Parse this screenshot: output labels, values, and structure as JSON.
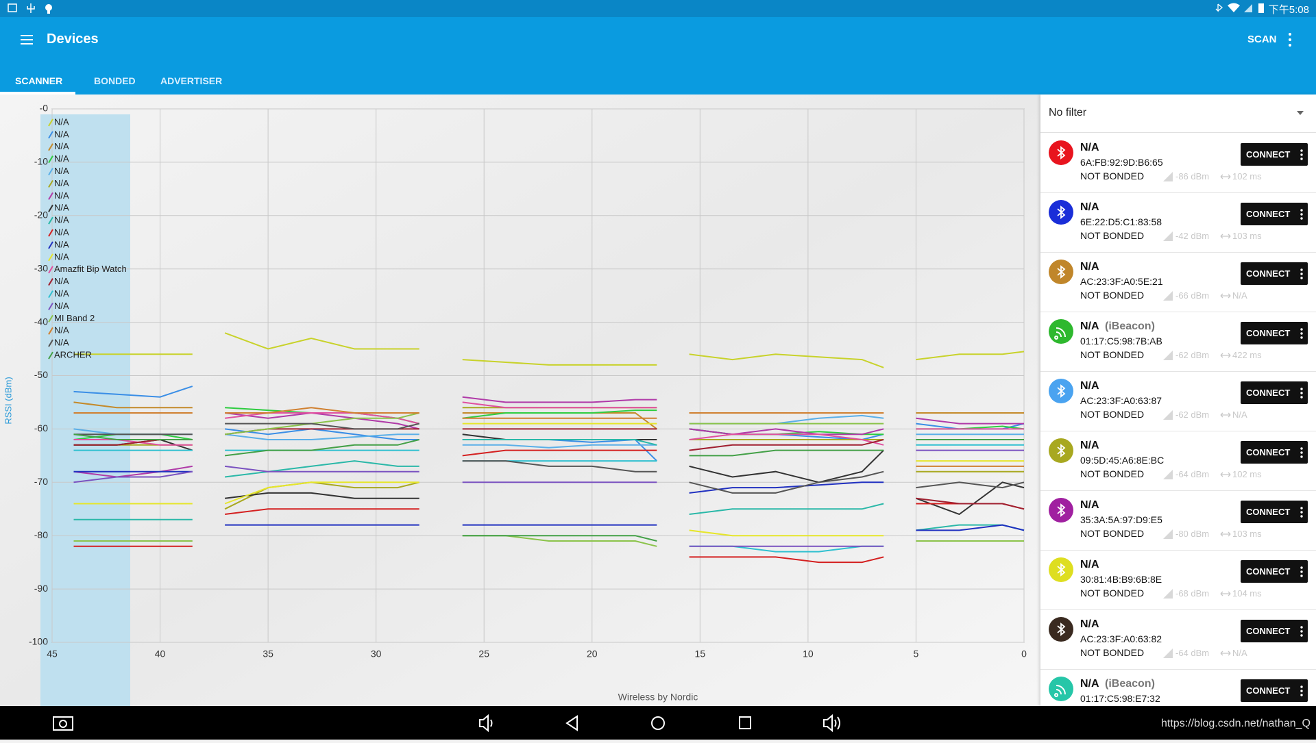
{
  "status_bar": {
    "time": "下午5:08"
  },
  "app_bar": {
    "title": "Devices",
    "action": "SCAN"
  },
  "tabs": [
    "SCANNER",
    "BONDED",
    "ADVERTISER"
  ],
  "chart_data": {
    "type": "line",
    "y_label": "RSSI (dBm)",
    "footer": "Wireless by Nordic",
    "grid": true,
    "xlim": [
      45,
      0
    ],
    "xticks": [
      45,
      40,
      35,
      30,
      25,
      20,
      15,
      10,
      5,
      0
    ],
    "ylim": [
      -100,
      0
    ],
    "yticks": [
      {
        "value": 0,
        "label": "-0"
      },
      -10,
      -20,
      -30,
      -40,
      -50,
      -60,
      -70,
      -80,
      -90,
      -100
    ],
    "x": [
      44,
      42,
      40,
      38.5,
      37.7,
      37,
      35,
      33,
      31,
      29,
      28,
      27,
      26,
      24,
      22,
      20,
      18,
      17,
      16.2,
      15.5,
      13.5,
      11.5,
      9.5,
      7.5,
      6.5,
      5.7,
      5,
      3,
      1,
      0
    ],
    "series": [
      {
        "name": "N/A",
        "color": "#c8d22a",
        "values": [
          -46,
          -46,
          -46,
          -46,
          null,
          -42,
          -45,
          -43,
          -45,
          -45,
          -45,
          null,
          -47,
          -47.5,
          -48,
          -48,
          -48,
          -48,
          null,
          -46,
          -47,
          -46,
          -46.5,
          -47,
          -48.5,
          null,
          -47,
          -46,
          -46,
          -45.5
        ]
      },
      {
        "name": "N/A",
        "color": "#3a8ee6",
        "values": [
          -53,
          -53.5,
          -54,
          -52,
          null,
          -60,
          -61,
          -60,
          -61,
          -62,
          -62,
          null,
          -62,
          -62,
          -62,
          -62.5,
          -62,
          -66,
          null,
          -60,
          -61,
          -61,
          -61.5,
          -62,
          -61,
          null,
          -59,
          -60,
          -60,
          -59
        ]
      },
      {
        "name": "N/A",
        "color": "#c48a2a",
        "values": [
          -55,
          -56,
          -56,
          -56,
          null,
          -57,
          -57,
          -57,
          -57,
          -57,
          -57,
          null,
          -57,
          -57,
          -57,
          -57,
          -57,
          -60,
          null,
          -57,
          -57,
          -57,
          -57,
          -57,
          -57,
          null,
          -57,
          -57,
          -57,
          -57
        ]
      },
      {
        "name": "N/A",
        "color": "#2ecc40",
        "values": [
          -62,
          -61,
          -61,
          -62,
          null,
          -56,
          -56.5,
          -57,
          -57,
          -58,
          -59,
          null,
          -58,
          -57,
          -57,
          -57,
          -56.5,
          -56.5,
          null,
          -60,
          -61,
          -61,
          -60.5,
          -61,
          -61,
          null,
          -60,
          -60,
          -59.5,
          -60
        ]
      },
      {
        "name": "N/A",
        "color": "#5aafe8",
        "values": [
          -60,
          -61,
          -61,
          -61,
          null,
          -61,
          -62,
          -62,
          -61.5,
          -61,
          -61,
          null,
          -63,
          -63,
          -63.5,
          -63,
          -63,
          -63,
          null,
          -59,
          -59,
          -59,
          -58,
          -57.5,
          -58,
          null,
          -61,
          -61,
          -61,
          -61
        ]
      },
      {
        "name": "N/A",
        "color": "#a8a820",
        "values": [
          -63,
          -63,
          -63,
          -63,
          null,
          -75,
          -71,
          -70,
          -71,
          -71,
          -70,
          null,
          -56,
          -56,
          -56,
          -56,
          -56,
          -56,
          null,
          -62,
          -62,
          -62,
          -62,
          -62,
          -62,
          null,
          -68,
          -68,
          -68,
          -68
        ]
      },
      {
        "name": "N/A",
        "color": "#b03aa8",
        "values": [
          -68,
          -69,
          -68,
          -67,
          null,
          -57,
          -58,
          -57,
          -58,
          -59,
          -60,
          null,
          -54,
          -55,
          -55,
          -55,
          -54.5,
          -54.5,
          null,
          -60,
          -61,
          -60,
          -61,
          -61,
          -60,
          null,
          -58,
          -59,
          -59,
          -59
        ]
      },
      {
        "name": "N/A",
        "color": "#333333",
        "values": [
          -63,
          -63,
          -62,
          -64,
          null,
          -73,
          -72,
          -72,
          -73,
          -73,
          -73,
          null,
          -61,
          -62,
          -62,
          -62,
          -62,
          -62,
          null,
          -67,
          -69,
          -68,
          -70,
          -68,
          -64,
          null,
          -73,
          -76,
          -70,
          -71
        ]
      },
      {
        "name": "N/A",
        "color": "#2ab8a8",
        "values": [
          -77,
          -77,
          -77,
          -77,
          null,
          -69,
          -68,
          -67,
          -66,
          -67,
          -67,
          null,
          -62,
          -62,
          -62,
          -62,
          -62,
          -63,
          null,
          -76,
          -75,
          -75,
          -75,
          -75,
          -74,
          null,
          -79,
          -78,
          -78,
          -79
        ]
      },
      {
        "name": "N/A",
        "color": "#d42020",
        "values": [
          -82,
          -82,
          -82,
          -82,
          null,
          -76,
          -75,
          -75,
          -75,
          -75,
          -75,
          null,
          -65,
          -64,
          -64,
          -64,
          -64,
          -64,
          null,
          -84,
          -84,
          -84,
          -85,
          -85,
          -84,
          null,
          -74,
          -74,
          -74,
          -75
        ]
      },
      {
        "name": "N/A",
        "color": "#2030c0",
        "values": [
          -68,
          -68,
          -68,
          -68,
          null,
          -78,
          -78,
          -78,
          -78,
          -78,
          -78,
          null,
          -78,
          -78,
          -78,
          -78,
          -78,
          -78,
          null,
          -72,
          -71,
          -71,
          -70.5,
          -70,
          -70,
          null,
          -79,
          -79,
          -78,
          -79
        ]
      },
      {
        "name": "N/A",
        "color": "#e6e62a",
        "values": [
          -74,
          -74,
          -74,
          -74,
          null,
          -74,
          -71,
          -70,
          -70,
          -70,
          -70,
          null,
          -59,
          -59,
          -59,
          -59,
          -59,
          -59,
          null,
          -79,
          -80,
          -80,
          -80,
          -80,
          -80,
          null,
          -66,
          -66,
          -66,
          -66
        ]
      },
      {
        "name": "Amazfit Bip Watch",
        "color": "#e050a0",
        "values": [
          -62,
          -62,
          -63,
          -63,
          null,
          -58,
          -57,
          -57,
          -57,
          -58,
          -59,
          null,
          -55,
          -56,
          -56,
          -56,
          -56,
          -56,
          null,
          -62,
          -61,
          -61,
          -61,
          -62,
          -63,
          null,
          -60,
          -60,
          -60,
          -60
        ]
      },
      {
        "name": "N/A",
        "color": "#a02030",
        "values": [
          -63,
          -63,
          -62,
          -62,
          null,
          -61,
          -60,
          -60,
          -60,
          -60,
          -60,
          null,
          -60,
          -60,
          -60,
          -60,
          -60,
          -60,
          null,
          -64,
          -63,
          -63,
          -63,
          -63,
          -62,
          null,
          -73,
          -74,
          -74,
          -75
        ]
      },
      {
        "name": "N/A",
        "color": "#30c0d0",
        "values": [
          -64,
          -64,
          -64,
          -64,
          null,
          -64,
          -64,
          -64,
          -64,
          -64,
          -64,
          null,
          -66,
          -66,
          -66,
          -66,
          -66,
          -66,
          null,
          -82,
          -82,
          -83,
          -83,
          -82,
          -82,
          null,
          -63,
          -63,
          -63,
          -63
        ]
      },
      {
        "name": "N/A",
        "color": "#7a52c0",
        "values": [
          -70,
          -69,
          -69,
          -68,
          null,
          -67,
          -68,
          -68,
          -68,
          -68,
          -68,
          null,
          -70,
          -70,
          -70,
          -70,
          -70,
          -70,
          null,
          -82,
          -82,
          -82,
          -82,
          -82,
          -82,
          null,
          -64,
          -64,
          -64,
          -64
        ]
      },
      {
        "name": "MI Band 2",
        "color": "#8bc34a",
        "values": [
          -81,
          -81,
          -81,
          -81,
          null,
          -61,
          -60,
          -59,
          -58,
          -58,
          -57,
          null,
          -80,
          -80,
          -81,
          -81,
          -81,
          -82,
          null,
          -59,
          -59,
          -59,
          -59,
          -59,
          -59,
          null,
          -81,
          -81,
          -81,
          -81
        ]
      },
      {
        "name": "N/A",
        "color": "#d08030",
        "values": [
          -57,
          -57,
          -57,
          -57,
          null,
          -57,
          -57,
          -56,
          -57,
          -57,
          -57,
          null,
          -58,
          -58,
          -58,
          -58,
          -58,
          -58,
          null,
          -57,
          -57,
          -57,
          -57,
          -57,
          -57,
          null,
          -67,
          -67,
          -67,
          -67
        ]
      },
      {
        "name": "N/A",
        "color": "#555555",
        "values": [
          -61,
          -61,
          -61,
          -61,
          null,
          -59,
          -59,
          -59,
          -60,
          -60,
          -59,
          null,
          -66,
          -66,
          -67,
          -67,
          -68,
          -68,
          null,
          -70,
          -72,
          -72,
          -70,
          -69,
          -68,
          null,
          -71,
          -70,
          -71,
          -70
        ]
      },
      {
        "name": "ARCHER",
        "color": "#43a047",
        "values": [
          -61,
          -62,
          -62,
          -62,
          null,
          -65,
          -64,
          -64,
          -63,
          -63,
          -62,
          null,
          -80,
          -80,
          -80,
          -80,
          -80,
          -81,
          null,
          -65,
          -65,
          -64,
          -64,
          -64,
          -64,
          null,
          -62,
          -62,
          -62,
          -62
        ]
      }
    ]
  },
  "filter": "No filter",
  "devices": [
    {
      "name": "N/A",
      "address": "6A:FB:92:9D:B6:65",
      "bond": "NOT BONDED",
      "rssi": "-86 dBm",
      "interval": "102 ms",
      "button": "CONNECT",
      "color": "#e8141e"
    },
    {
      "name": "N/A",
      "address": "6E:22:D5:C1:83:58",
      "bond": "NOT BONDED",
      "rssi": "-42 dBm",
      "interval": "103 ms",
      "button": "CONNECT",
      "color": "#1a2ed8"
    },
    {
      "name": "N/A",
      "address": "AC:23:3F:A0:5E:21",
      "bond": "NOT BONDED",
      "rssi": "-66 dBm",
      "interval": "N/A",
      "button": "CONNECT",
      "color": "#c0862a"
    },
    {
      "name": "N/A",
      "tag": "(iBeacon)",
      "address": "01:17:C5:98:7B:AB",
      "bond": "NOT BONDED",
      "rssi": "-62 dBm",
      "interval": "422 ms",
      "button": "CONNECT",
      "color": "#2eb82e"
    },
    {
      "name": "N/A",
      "address": "AC:23:3F:A0:63:87",
      "bond": "NOT BONDED",
      "rssi": "-62 dBm",
      "interval": "N/A",
      "button": "CONNECT",
      "color": "#4aa3f0"
    },
    {
      "name": "N/A",
      "address": "09:5D:45:A6:8E:BC",
      "bond": "NOT BONDED",
      "rssi": "-64 dBm",
      "interval": "102 ms",
      "button": "CONNECT",
      "color": "#a8a820"
    },
    {
      "name": "N/A",
      "address": "35:3A:5A:97:D9:E5",
      "bond": "NOT BONDED",
      "rssi": "-80 dBm",
      "interval": "103 ms",
      "button": "CONNECT",
      "color": "#a020a0"
    },
    {
      "name": "N/A",
      "address": "30:81:4B:B9:6B:8E",
      "bond": "NOT BONDED",
      "rssi": "-68 dBm",
      "interval": "104 ms",
      "button": "CONNECT",
      "color": "#dede20"
    },
    {
      "name": "N/A",
      "address": "AC:23:3F:A0:63:82",
      "bond": "NOT BONDED",
      "rssi": "-64 dBm",
      "interval": "N/A",
      "button": "CONNECT",
      "color": "#3a2a20"
    },
    {
      "name": "N/A",
      "tag": "(iBeacon)",
      "address": "01:17:C5:98:E7:32",
      "button": "CONNECT",
      "color": "#26c6a8"
    }
  ],
  "watermark": "https://blog.csdn.net/nathan_Q"
}
